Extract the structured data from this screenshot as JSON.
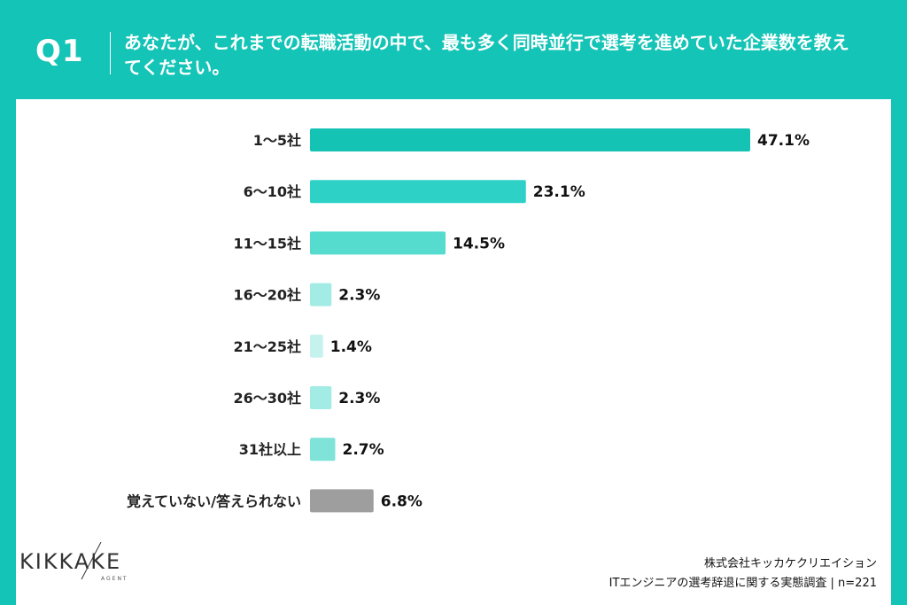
{
  "header": {
    "label": "Q1",
    "question": "あなたが、これまでの転職活動の中で、最も多く同時並行で選考を進めていた企業数を教えてください。"
  },
  "chart_data": {
    "type": "bar",
    "orientation": "horizontal",
    "categories": [
      "1〜5社",
      "6〜10社",
      "11〜15社",
      "16〜20社",
      "21〜25社",
      "26〜30社",
      "31社以上",
      "覚えていない/答えられない"
    ],
    "values": [
      47.1,
      23.1,
      14.5,
      2.3,
      1.4,
      2.3,
      2.7,
      6.8
    ],
    "value_labels": [
      "47.1%",
      "23.1%",
      "14.5%",
      "2.3%",
      "1.4%",
      "2.3%",
      "2.7%",
      "6.8%"
    ],
    "colors": [
      "#15c3b5",
      "#2dd1c6",
      "#55dccf",
      "#a3ebe5",
      "#c6f2ee",
      "#a3ebe5",
      "#7fe3da",
      "#9e9e9e"
    ],
    "unit": "%",
    "xlim": [
      0,
      47.1
    ]
  },
  "logo": {
    "text": "KIKKAKE",
    "sub": "AGENT"
  },
  "source": {
    "company": "株式会社キッカケクリエイション",
    "survey": "ITエンジニアの選考辞退に関する実態調査 | n=221"
  }
}
